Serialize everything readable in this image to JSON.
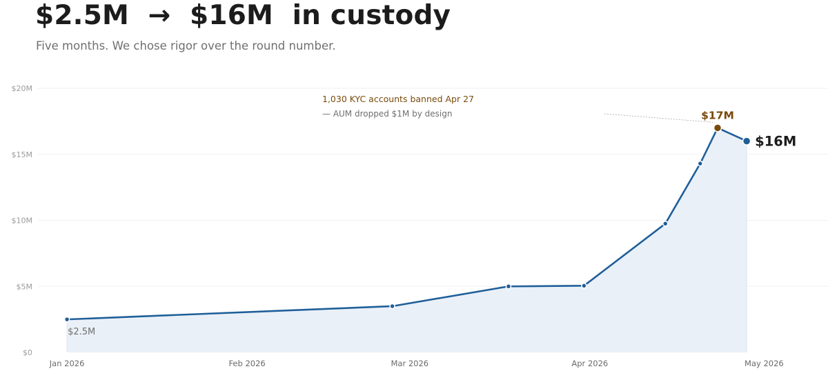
{
  "header": {
    "title": "$2.5M  →  $16M  in custody",
    "subtitle": "Five months. We chose rigor over the round number."
  },
  "colors": {
    "line": "#1f5f99",
    "area": "#eaf0f8",
    "peak": "#7a4a0b",
    "grid": "#efefef",
    "axis_text": "#9a9a9a",
    "x_axis_text": "#6a6a6a",
    "start_label": "#6f6f6f",
    "end_label": "#1c1c1c",
    "annotation_note": "#6f6f6f"
  },
  "chart_data": {
    "type": "area",
    "title": "",
    "xlabel": "",
    "ylabel": "",
    "ylim": [
      0,
      20000000
    ],
    "xlim": [
      "2025-12-27",
      "2026-05-12"
    ],
    "y_ticks": [
      {
        "value": 0,
        "label": "$0"
      },
      {
        "value": 5000000,
        "label": "$5M"
      },
      {
        "value": 10000000,
        "label": "$10M"
      },
      {
        "value": 15000000,
        "label": "$15M"
      },
      {
        "value": 20000000,
        "label": "$20M"
      }
    ],
    "x_ticks": [
      {
        "date": "2026-01-01",
        "label": "Jan 2026"
      },
      {
        "date": "2026-02-01",
        "label": "Feb 2026"
      },
      {
        "date": "2026-03-01",
        "label": "Mar 2026"
      },
      {
        "date": "2026-04-01",
        "label": "Apr 2026"
      },
      {
        "date": "2026-05-01",
        "label": "May 2026"
      }
    ],
    "grid": true,
    "legend": "none",
    "series": [
      {
        "points": [
          {
            "x": "2026-01-01",
            "y": 2500000
          },
          {
            "x": "2026-02-26",
            "y": 3500000
          },
          {
            "x": "2026-03-18",
            "y": 5000000
          },
          {
            "x": "2026-03-31",
            "y": 5050000
          },
          {
            "x": "2026-04-14",
            "y": 9750000
          },
          {
            "x": "2026-04-20",
            "y": 14300000
          },
          {
            "x": "2026-04-23",
            "y": 17000000
          },
          {
            "x": "2026-04-28",
            "y": 16000000
          }
        ]
      }
    ],
    "point_labels": {
      "start": "$2.5M",
      "peak": "$17M",
      "end": "$16M"
    },
    "annotation": {
      "headline": "1,030 KYC accounts banned Apr 27",
      "note": "— AUM dropped $1M by design"
    }
  }
}
